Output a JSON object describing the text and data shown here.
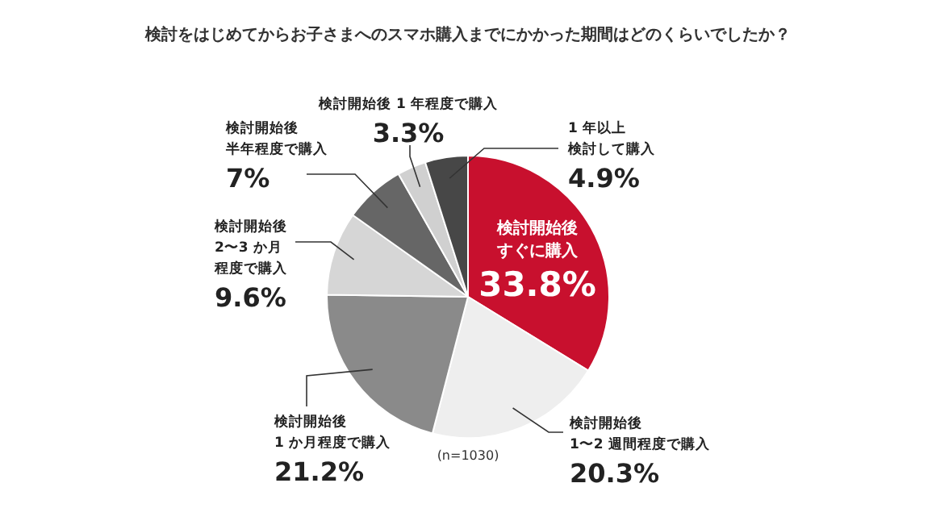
{
  "chart_data": {
    "type": "pie",
    "title": "検討をはじめてからお子さまへのスマホ購入までにかかった期間はどのくらいでしたか？",
    "categories": [
      "検討開始後すぐに購入",
      "検討開始後1〜2 週間程度で購入",
      "検討開始後1 か月程度で購入",
      "検討開始後2〜3 か月程度で購入",
      "検討開始後半年程度で購入",
      "検討開始後 1 年程度で購入",
      "1 年以上検討して購入"
    ],
    "values": [
      33.8,
      20.3,
      21.2,
      9.6,
      7,
      3.3,
      4.9
    ],
    "value_labels": [
      "33.8%",
      "20.3%",
      "21.2%",
      "9.6%",
      "7%",
      "3.3%",
      "4.9%"
    ],
    "colors": [
      "#c8102e",
      "#eeeeee",
      "#8a8a8a",
      "#d6d6d6",
      "#666666",
      "#d0d0d0",
      "#474747"
    ],
    "annotations": [
      "(n=1030)"
    ],
    "legend": false
  }
}
